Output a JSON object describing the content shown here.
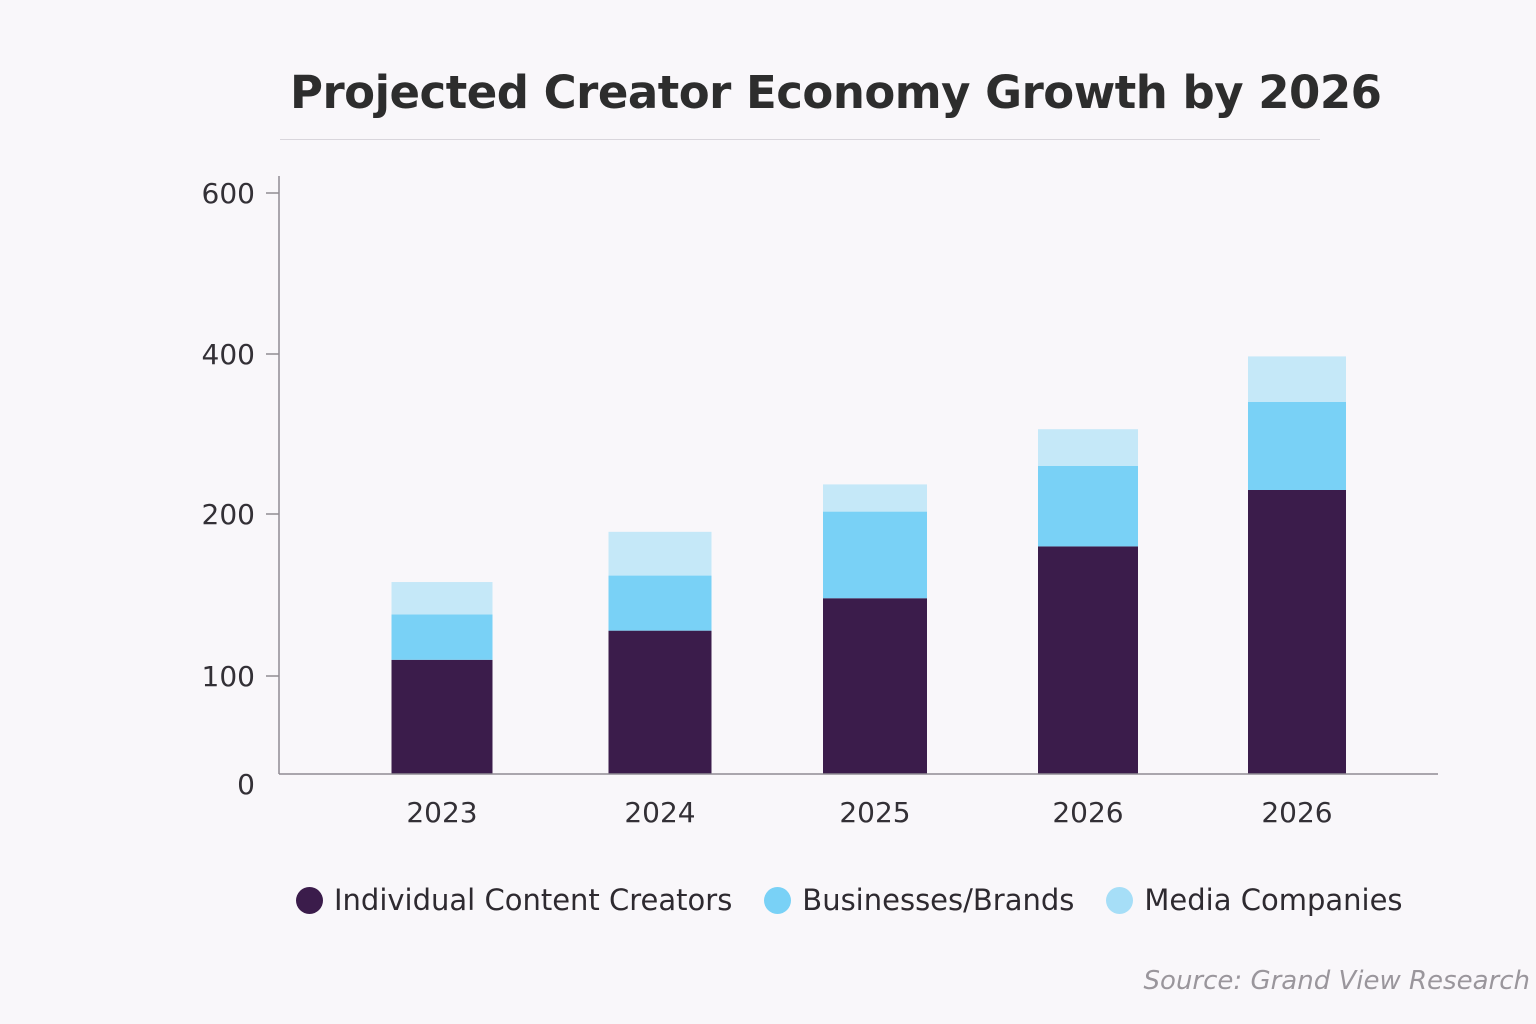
{
  "chart_data": {
    "type": "bar",
    "stacked": true,
    "title": "Projected Creator Economy Growth by 2026",
    "xlabel": "",
    "ylabel": "",
    "categories": [
      "2023",
      "2024",
      "2025",
      "2026",
      "2026"
    ],
    "yticks": [
      {
        "value": 0,
        "label": "0"
      },
      {
        "value": 100,
        "label": "100"
      },
      {
        "value": 200,
        "label": "200"
      },
      {
        "value": 400,
        "label": "400"
      },
      {
        "value": 600,
        "label": "600"
      }
    ],
    "series": [
      {
        "name": "Individual Content Creators",
        "color": "#3b1c4b",
        "values": [
          110,
          128,
          148,
          180,
          230
        ]
      },
      {
        "name": "Businesses/Brands",
        "color": "#79d1f6",
        "values": [
          28,
          34,
          55,
          80,
          110
        ]
      },
      {
        "name": "Media Companies",
        "color": "#c5e8f8",
        "values": [
          20,
          27,
          34,
          46,
          57
        ]
      }
    ],
    "legend_position": "bottom",
    "grid": false
  },
  "source": "Source: Grand View Research"
}
